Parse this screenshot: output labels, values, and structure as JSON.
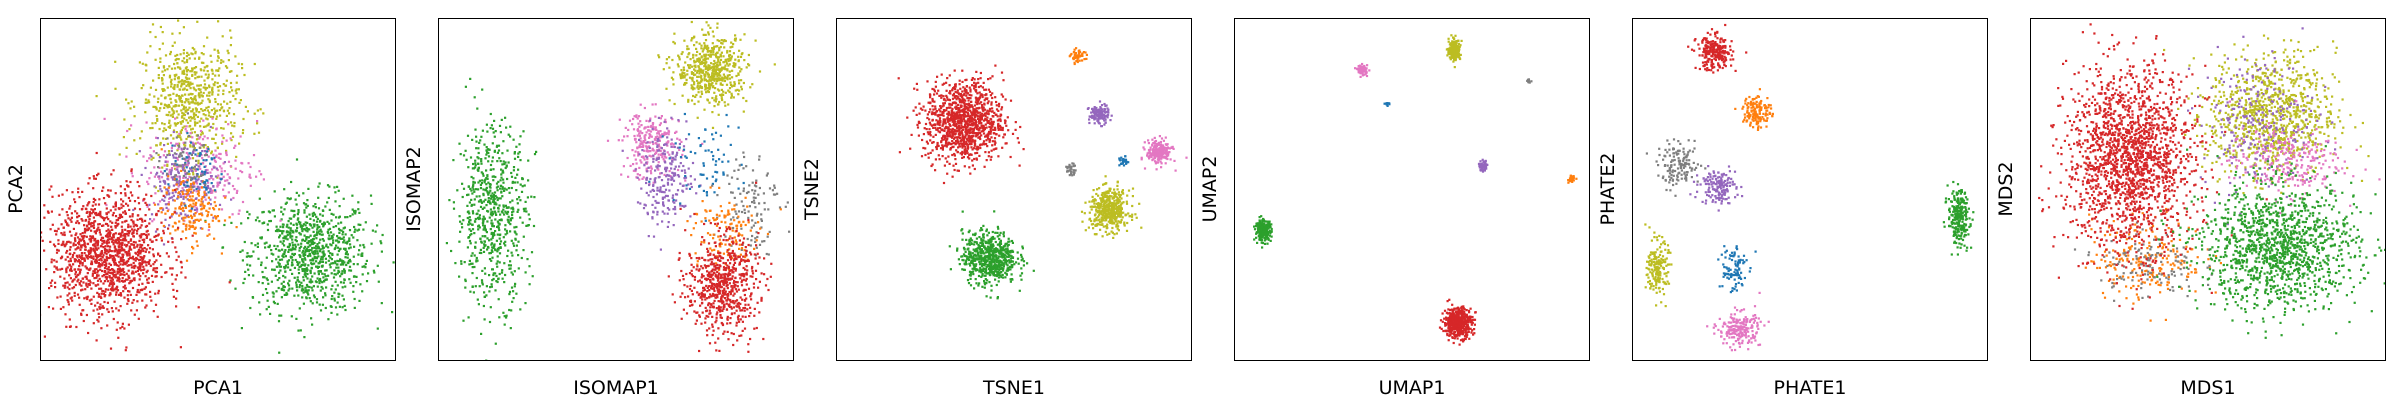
{
  "colors": {
    "c0": "#d62728",
    "c1": "#2ca02c",
    "c2": "#bcbd22",
    "c3": "#9467bd",
    "c4": "#e377c2",
    "c5": "#ff7f0e",
    "c6": "#1f77b4",
    "c7": "#7f7f7f"
  },
  "chart_data": [
    {
      "type": "scatter",
      "title": "",
      "xlabel": "PCA1",
      "ylabel": "PCA2",
      "xlim": [
        0,
        1
      ],
      "ylim": [
        0,
        1
      ],
      "grid": false,
      "ticks": false,
      "clusters": [
        {
          "color": "c1",
          "x": 0.76,
          "y": 0.31,
          "sx": 0.085,
          "sy": 0.085,
          "n": 900
        },
        {
          "color": "c2",
          "x": 0.42,
          "y": 0.76,
          "sx": 0.07,
          "sy": 0.09,
          "n": 650
        },
        {
          "color": "c4",
          "x": 0.45,
          "y": 0.56,
          "sx": 0.08,
          "sy": 0.07,
          "n": 260
        },
        {
          "color": "c3",
          "x": 0.4,
          "y": 0.52,
          "sx": 0.05,
          "sy": 0.06,
          "n": 220
        },
        {
          "color": "c5",
          "x": 0.42,
          "y": 0.44,
          "sx": 0.04,
          "sy": 0.05,
          "n": 180
        },
        {
          "color": "c6",
          "x": 0.44,
          "y": 0.56,
          "sx": 0.04,
          "sy": 0.05,
          "n": 60
        },
        {
          "color": "c7",
          "x": 0.4,
          "y": 0.58,
          "sx": 0.04,
          "sy": 0.04,
          "n": 50
        },
        {
          "color": "c0",
          "x": 0.19,
          "y": 0.31,
          "sx": 0.08,
          "sy": 0.09,
          "n": 1300
        }
      ]
    },
    {
      "type": "scatter",
      "title": "",
      "xlabel": "ISOMAP1",
      "ylabel": "ISOMAP2",
      "xlim": [
        0,
        1
      ],
      "ylim": [
        0,
        1
      ],
      "grid": false,
      "ticks": false,
      "clusters": [
        {
          "color": "c1",
          "x": 0.15,
          "y": 0.43,
          "sx": 0.05,
          "sy": 0.13,
          "n": 650
        },
        {
          "color": "c2",
          "x": 0.77,
          "y": 0.85,
          "sx": 0.05,
          "sy": 0.05,
          "n": 550
        },
        {
          "color": "c4",
          "x": 0.6,
          "y": 0.63,
          "sx": 0.04,
          "sy": 0.05,
          "n": 250
        },
        {
          "color": "c3",
          "x": 0.64,
          "y": 0.53,
          "sx": 0.04,
          "sy": 0.07,
          "n": 220
        },
        {
          "color": "c6",
          "x": 0.75,
          "y": 0.58,
          "sx": 0.05,
          "sy": 0.06,
          "n": 70
        },
        {
          "color": "c7",
          "x": 0.88,
          "y": 0.47,
          "sx": 0.04,
          "sy": 0.08,
          "n": 110
        },
        {
          "color": "c5",
          "x": 0.8,
          "y": 0.37,
          "sx": 0.05,
          "sy": 0.06,
          "n": 120
        },
        {
          "color": "c0",
          "x": 0.8,
          "y": 0.22,
          "sx": 0.05,
          "sy": 0.07,
          "n": 650
        }
      ]
    },
    {
      "type": "scatter",
      "title": "",
      "xlabel": "TSNE1",
      "ylabel": "TSNE2",
      "xlim": [
        0,
        1
      ],
      "ylim": [
        0,
        1
      ],
      "grid": false,
      "ticks": false,
      "clusters": [
        {
          "color": "c0",
          "x": 0.36,
          "y": 0.7,
          "sx": 0.055,
          "sy": 0.06,
          "n": 1100
        },
        {
          "color": "c1",
          "x": 0.43,
          "y": 0.3,
          "sx": 0.038,
          "sy": 0.038,
          "n": 650
        },
        {
          "color": "c2",
          "x": 0.77,
          "y": 0.44,
          "sx": 0.028,
          "sy": 0.03,
          "n": 450
        },
        {
          "color": "c4",
          "x": 0.91,
          "y": 0.61,
          "sx": 0.018,
          "sy": 0.018,
          "n": 200
        },
        {
          "color": "c3",
          "x": 0.74,
          "y": 0.72,
          "sx": 0.014,
          "sy": 0.014,
          "n": 120
        },
        {
          "color": "c5",
          "x": 0.68,
          "y": 0.89,
          "sx": 0.01,
          "sy": 0.01,
          "n": 50
        },
        {
          "color": "c6",
          "x": 0.81,
          "y": 0.58,
          "sx": 0.006,
          "sy": 0.008,
          "n": 25
        },
        {
          "color": "c7",
          "x": 0.66,
          "y": 0.56,
          "sx": 0.008,
          "sy": 0.008,
          "n": 30
        }
      ]
    },
    {
      "type": "scatter",
      "title": "",
      "xlabel": "UMAP1",
      "ylabel": "UMAP2",
      "xlim": [
        0,
        1
      ],
      "ylim": [
        0,
        1
      ],
      "grid": false,
      "ticks": false,
      "clusters": [
        {
          "color": "c0",
          "x": 0.63,
          "y": 0.11,
          "sx": 0.02,
          "sy": 0.022,
          "n": 500
        },
        {
          "color": "c1",
          "x": 0.08,
          "y": 0.38,
          "sx": 0.011,
          "sy": 0.015,
          "n": 220
        },
        {
          "color": "c2",
          "x": 0.62,
          "y": 0.91,
          "sx": 0.008,
          "sy": 0.015,
          "n": 220
        },
        {
          "color": "c4",
          "x": 0.36,
          "y": 0.85,
          "sx": 0.007,
          "sy": 0.007,
          "n": 80
        },
        {
          "color": "c3",
          "x": 0.7,
          "y": 0.57,
          "sx": 0.006,
          "sy": 0.007,
          "n": 50
        },
        {
          "color": "c5",
          "x": 0.95,
          "y": 0.53,
          "sx": 0.004,
          "sy": 0.005,
          "n": 30
        },
        {
          "color": "c6",
          "x": 0.43,
          "y": 0.75,
          "sx": 0.003,
          "sy": 0.003,
          "n": 10
        },
        {
          "color": "c7",
          "x": 0.83,
          "y": 0.82,
          "sx": 0.003,
          "sy": 0.003,
          "n": 10
        }
      ]
    },
    {
      "type": "scatter",
      "title": "",
      "xlabel": "PHATE1",
      "ylabel": "PHATE2",
      "xlim": [
        0,
        1
      ],
      "ylim": [
        0,
        1
      ],
      "grid": false,
      "ticks": false,
      "clusters": [
        {
          "color": "c0",
          "x": 0.23,
          "y": 0.9,
          "sx": 0.025,
          "sy": 0.025,
          "n": 250
        },
        {
          "color": "c5",
          "x": 0.35,
          "y": 0.73,
          "sx": 0.02,
          "sy": 0.025,
          "n": 140
        },
        {
          "color": "c7",
          "x": 0.13,
          "y": 0.57,
          "sx": 0.03,
          "sy": 0.03,
          "n": 140
        },
        {
          "color": "c3",
          "x": 0.24,
          "y": 0.51,
          "sx": 0.025,
          "sy": 0.025,
          "n": 160
        },
        {
          "color": "c6",
          "x": 0.28,
          "y": 0.27,
          "sx": 0.02,
          "sy": 0.04,
          "n": 90
        },
        {
          "color": "c2",
          "x": 0.07,
          "y": 0.27,
          "sx": 0.015,
          "sy": 0.04,
          "n": 180
        },
        {
          "color": "c4",
          "x": 0.3,
          "y": 0.09,
          "sx": 0.03,
          "sy": 0.025,
          "n": 200
        },
        {
          "color": "c1",
          "x": 0.92,
          "y": 0.42,
          "sx": 0.015,
          "sy": 0.04,
          "n": 250
        }
      ]
    },
    {
      "type": "scatter",
      "title": "",
      "xlabel": "MDS1",
      "ylabel": "MDS2",
      "xlim": [
        0,
        1
      ],
      "ylim": [
        0,
        1
      ],
      "grid": false,
      "ticks": false,
      "clusters": [
        {
          "color": "c2",
          "x": 0.68,
          "y": 0.72,
          "sx": 0.09,
          "sy": 0.09,
          "n": 900
        },
        {
          "color": "c3",
          "x": 0.64,
          "y": 0.7,
          "sx": 0.08,
          "sy": 0.1,
          "n": 250
        },
        {
          "color": "c4",
          "x": 0.72,
          "y": 0.58,
          "sx": 0.08,
          "sy": 0.05,
          "n": 250
        },
        {
          "color": "c5",
          "x": 0.33,
          "y": 0.3,
          "sx": 0.08,
          "sy": 0.06,
          "n": 220
        },
        {
          "color": "c7",
          "x": 0.33,
          "y": 0.28,
          "sx": 0.07,
          "sy": 0.05,
          "n": 120
        },
        {
          "color": "c0",
          "x": 0.28,
          "y": 0.59,
          "sx": 0.09,
          "sy": 0.13,
          "n": 1800
        },
        {
          "color": "c1",
          "x": 0.7,
          "y": 0.33,
          "sx": 0.11,
          "sy": 0.09,
          "n": 1300
        }
      ]
    }
  ]
}
